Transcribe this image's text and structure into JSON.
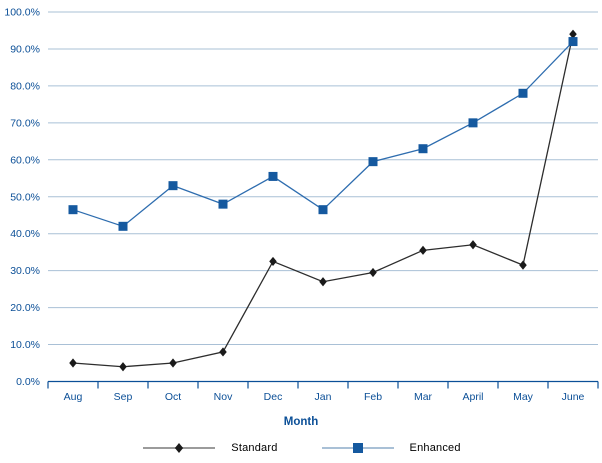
{
  "chart_data": {
    "type": "line",
    "title": "",
    "xlabel": "Month",
    "ylabel": "",
    "ylim": [
      0,
      100
    ],
    "ytick_step": 10,
    "ytick_format": "percent_one_decimal",
    "grid": "horizontal",
    "legend_position": "bottom-center",
    "categories": [
      "Aug",
      "Sep",
      "Oct",
      "Nov",
      "Dec",
      "Jan",
      "Feb",
      "Mar",
      "April",
      "May",
      "June"
    ],
    "series": [
      {
        "name": "Standard",
        "values": [
          5,
          4,
          5,
          8,
          32.5,
          27,
          29.5,
          35.5,
          37,
          31.5,
          94
        ],
        "line_color": "#2d2d2d",
        "marker": "diamond",
        "marker_color": "#1a1a1a",
        "legend_line_color": "#9b9b9b"
      },
      {
        "name": "Enhanced",
        "values": [
          46.5,
          42,
          53,
          48,
          55.5,
          46.5,
          59.5,
          63,
          70,
          78,
          92
        ],
        "line_color": "#2e6daf",
        "marker": "square",
        "marker_color": "#15599f",
        "legend_line_color": "#a9c0d6"
      }
    ],
    "colors": {
      "axis": "#0b4f97",
      "grid": "#a9c0d6",
      "labels": "#0b4f97",
      "background": "#ffffff"
    }
  },
  "legend": {
    "items": [
      {
        "label": "Standard"
      },
      {
        "label": "Enhanced"
      }
    ]
  },
  "axis": {
    "x_title": "Month"
  }
}
